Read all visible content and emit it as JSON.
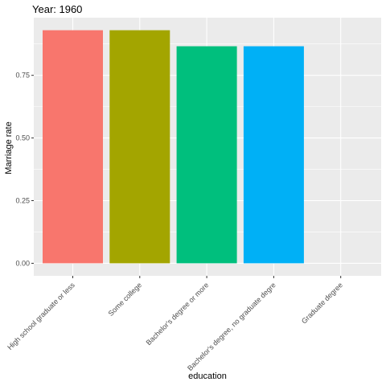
{
  "chart_data": {
    "type": "bar",
    "title": "Year: 1960",
    "xlabel": "education",
    "ylabel": "Marriage rate",
    "categories": [
      "High school graduate or less",
      "Some college",
      "Bachelor's degree or more",
      "Bachelor's degree, no graduate degre",
      "Graduate degree"
    ],
    "values": [
      0.93,
      0.93,
      0.866,
      0.866,
      null
    ],
    "colors": [
      "#F8766D",
      "#A3A500",
      "#00BF7D",
      "#00B0F6",
      "#E76BF3"
    ],
    "ylim": [
      -0.05,
      0.98
    ],
    "yticks": [
      0.0,
      0.25,
      0.5,
      0.75
    ],
    "ytick_labels": [
      "0.00",
      "0.25",
      "0.50",
      "0.75"
    ],
    "grid": true,
    "legend": "none",
    "panel_background": "#EBEBEB",
    "grid_color": "#FFFFFF"
  }
}
